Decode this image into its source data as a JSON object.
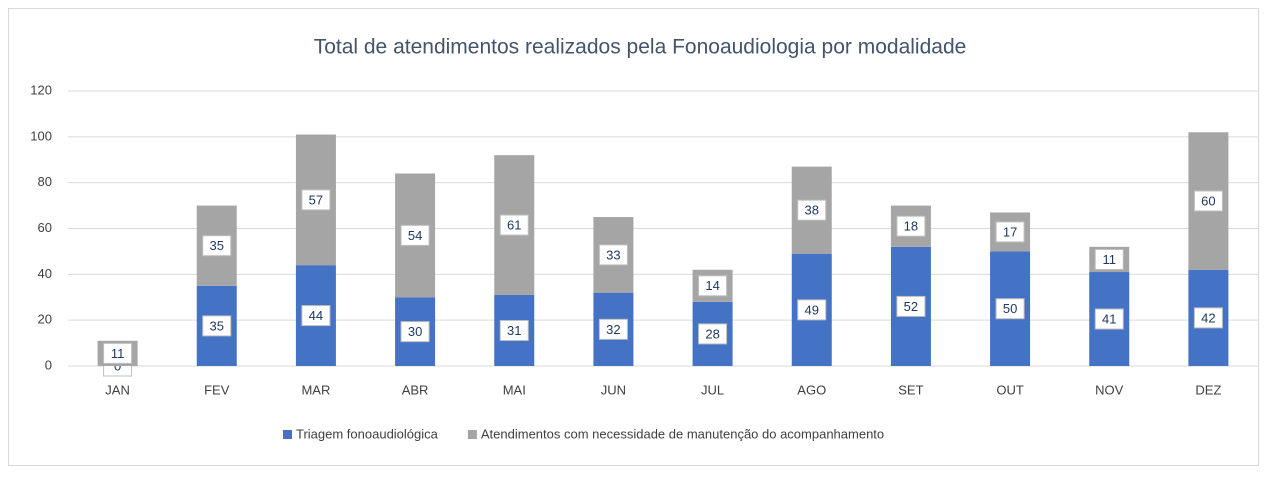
{
  "chart_data": {
    "type": "stacked_bar",
    "title": "Total de atendimentos realizados pela Fonoaudiologia por modalidade",
    "categories": [
      "JAN",
      "FEV",
      "MAR",
      "ABR",
      "MAI",
      "JUN",
      "JUL",
      "AGO",
      "SET",
      "OUT",
      "NOV",
      "DEZ"
    ],
    "series": [
      {
        "name": "Triagem fonoaudiológica",
        "color": "#4472c4",
        "values": [
          0,
          35,
          44,
          30,
          31,
          32,
          28,
          49,
          52,
          50,
          41,
          42
        ]
      },
      {
        "name": "Atendimentos com necessidade de manutenção do acompanhamento",
        "color": "#a5a5a5",
        "values": [
          11,
          35,
          57,
          54,
          61,
          33,
          14,
          38,
          18,
          17,
          11,
          60
        ]
      }
    ],
    "ylim": [
      0,
      120
    ],
    "yticks": [
      0,
      20,
      40,
      60,
      80,
      100,
      120
    ],
    "grid": true,
    "legend": "bottom"
  }
}
